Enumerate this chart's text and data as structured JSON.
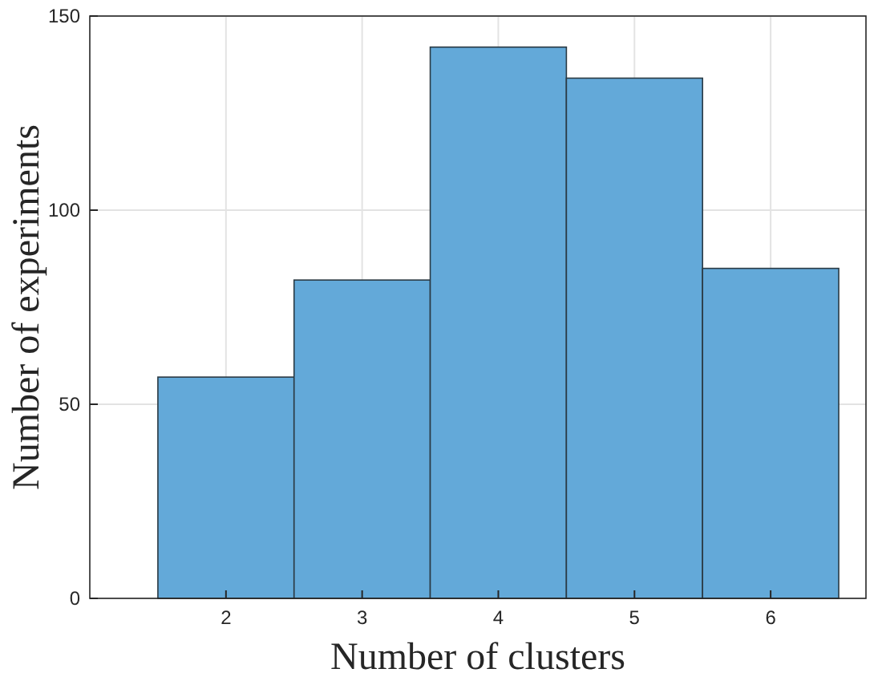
{
  "chart_data": {
    "type": "histogram",
    "xlabel": "Number of clusters",
    "ylabel": "Number of experiments",
    "bins": [
      1.5,
      2.5,
      3.5,
      4.5,
      5.5,
      6.5
    ],
    "values": [
      57,
      82,
      142,
      134,
      85
    ],
    "color": "#63a9d9",
    "xlim": [
      1,
      6.7
    ],
    "xticks": [
      2,
      3,
      4,
      5,
      6
    ],
    "ylim": [
      0,
      150
    ],
    "yticks": [
      0,
      50,
      100,
      150
    ],
    "grid": true
  }
}
